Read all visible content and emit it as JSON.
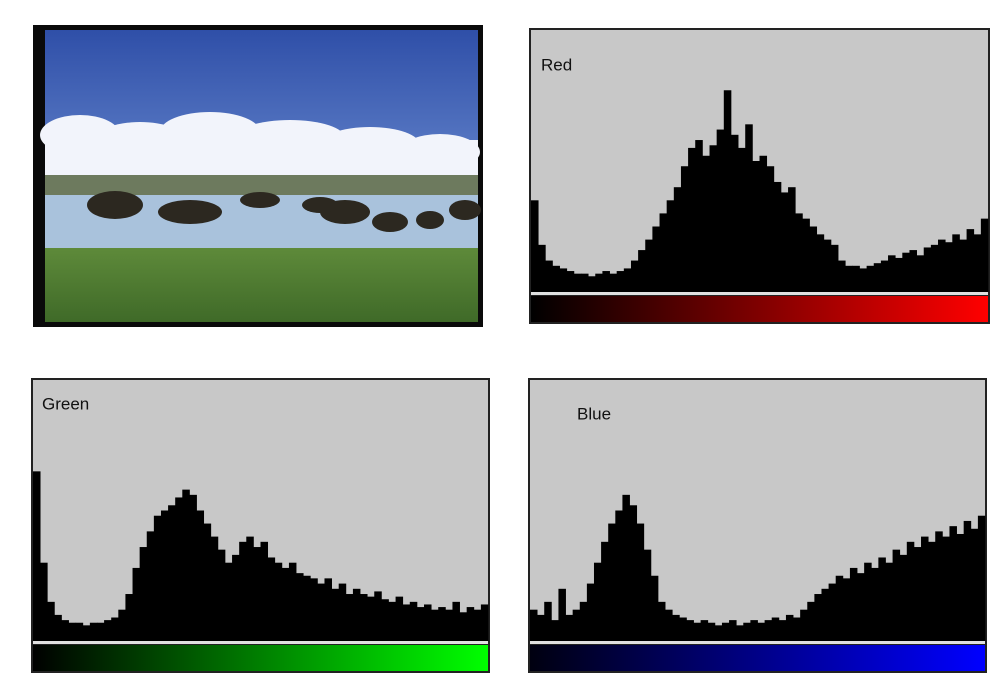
{
  "chart_data": [
    {
      "type": "histogram",
      "title": "Red",
      "color": "#000000",
      "gradient": [
        "#000000",
        "#ff0000"
      ],
      "xlim": [
        0,
        256
      ],
      "ylim": [
        0,
        100
      ],
      "bins": [
        0,
        4,
        8,
        12,
        16,
        20,
        24,
        28,
        32,
        36,
        40,
        44,
        48,
        52,
        56,
        60,
        64,
        68,
        72,
        76,
        80,
        84,
        88,
        92,
        96,
        100,
        104,
        108,
        112,
        116,
        120,
        124,
        128,
        132,
        136,
        140,
        144,
        148,
        152,
        156,
        160,
        164,
        168,
        172,
        176,
        180,
        184,
        188,
        192,
        196,
        200,
        204,
        208,
        212,
        216,
        220,
        224,
        228,
        232,
        236,
        240,
        244,
        248,
        252,
        256
      ],
      "values": [
        35,
        18,
        12,
        10,
        9,
        8,
        7,
        7,
        6,
        7,
        8,
        7,
        8,
        9,
        12,
        16,
        20,
        25,
        30,
        35,
        40,
        48,
        55,
        58,
        52,
        56,
        62,
        77,
        60,
        55,
        64,
        50,
        52,
        48,
        42,
        38,
        40,
        30,
        28,
        25,
        22,
        20,
        18,
        12,
        10,
        10,
        9,
        10,
        11,
        12,
        14,
        13,
        15,
        16,
        14,
        17,
        18,
        20,
        19,
        22,
        20,
        24,
        22,
        28
      ]
    },
    {
      "type": "histogram",
      "title": "Green",
      "color": "#000000",
      "gradient": [
        "#000000",
        "#00ff00"
      ],
      "xlim": [
        0,
        256
      ],
      "ylim": [
        0,
        100
      ],
      "bins": [
        0,
        4,
        8,
        12,
        16,
        20,
        24,
        28,
        32,
        36,
        40,
        44,
        48,
        52,
        56,
        60,
        64,
        68,
        72,
        76,
        80,
        84,
        88,
        92,
        96,
        100,
        104,
        108,
        112,
        116,
        120,
        124,
        128,
        132,
        136,
        140,
        144,
        148,
        152,
        156,
        160,
        164,
        168,
        172,
        176,
        180,
        184,
        188,
        192,
        196,
        200,
        204,
        208,
        212,
        216,
        220,
        224,
        228,
        232,
        236,
        240,
        244,
        248,
        252,
        256
      ],
      "values": [
        65,
        30,
        15,
        10,
        8,
        7,
        7,
        6,
        7,
        7,
        8,
        9,
        12,
        18,
        28,
        36,
        42,
        48,
        50,
        52,
        55,
        58,
        56,
        50,
        45,
        40,
        35,
        30,
        33,
        38,
        40,
        36,
        38,
        32,
        30,
        28,
        30,
        26,
        25,
        24,
        22,
        24,
        20,
        22,
        18,
        20,
        18,
        17,
        19,
        16,
        15,
        17,
        14,
        15,
        13,
        14,
        12,
        13,
        12,
        15,
        11,
        13,
        12,
        14
      ]
    },
    {
      "type": "histogram",
      "title": "Blue",
      "color": "#000000",
      "gradient": [
        "#000010",
        "#0000ff"
      ],
      "xlim": [
        0,
        256
      ],
      "ylim": [
        0,
        100
      ],
      "bins": [
        0,
        4,
        8,
        12,
        16,
        20,
        24,
        28,
        32,
        36,
        40,
        44,
        48,
        52,
        56,
        60,
        64,
        68,
        72,
        76,
        80,
        84,
        88,
        92,
        96,
        100,
        104,
        108,
        112,
        116,
        120,
        124,
        128,
        132,
        136,
        140,
        144,
        148,
        152,
        156,
        160,
        164,
        168,
        172,
        176,
        180,
        184,
        188,
        192,
        196,
        200,
        204,
        208,
        212,
        216,
        220,
        224,
        228,
        232,
        236,
        240,
        244,
        248,
        252,
        256
      ],
      "values": [
        12,
        10,
        15,
        8,
        20,
        10,
        12,
        15,
        22,
        30,
        38,
        45,
        50,
        56,
        52,
        45,
        35,
        25,
        15,
        12,
        10,
        9,
        8,
        7,
        8,
        7,
        6,
        7,
        8,
        6,
        7,
        8,
        7,
        8,
        9,
        8,
        10,
        9,
        12,
        15,
        18,
        20,
        22,
        25,
        24,
        28,
        26,
        30,
        28,
        32,
        30,
        35,
        33,
        38,
        36,
        40,
        38,
        42,
        40,
        44,
        41,
        46,
        43,
        48
      ]
    }
  ]
}
